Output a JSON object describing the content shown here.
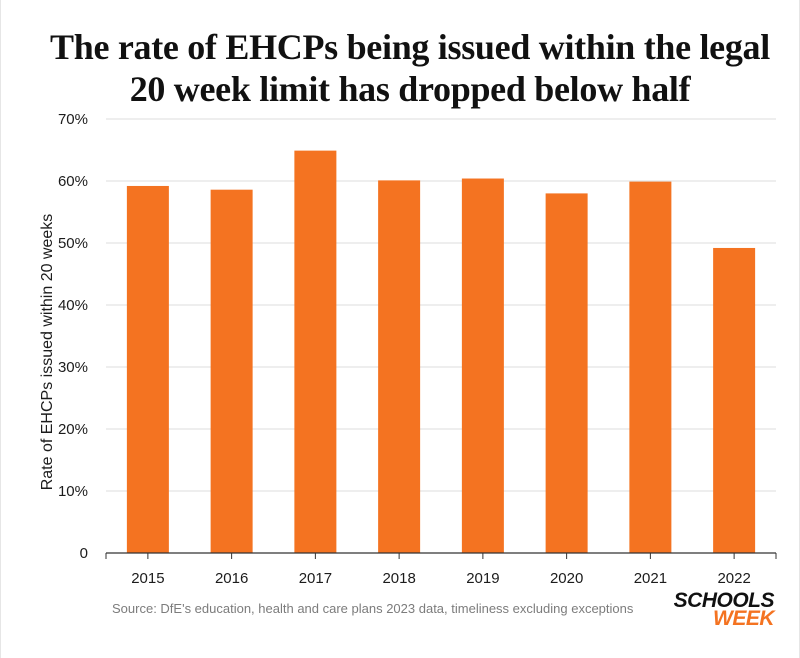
{
  "colors": {
    "bar": "#f47321",
    "grid": "#dcdcdc",
    "axis": "#333333",
    "brand_accent": "#f47321"
  },
  "chart_data": {
    "type": "bar",
    "title": "The rate of EHCPs being issued within the legal 20 week limit has dropped below half",
    "title_lines": [
      "The rate of EHCPs being issued within the legal",
      "20 week limit has dropped below half"
    ],
    "ylabel": "Rate of EHCPs issued within 20 weeks",
    "xlabel": "",
    "categories": [
      "2015",
      "2016",
      "2017",
      "2018",
      "2019",
      "2020",
      "2021",
      "2022"
    ],
    "values": [
      59.2,
      58.6,
      64.9,
      60.1,
      60.4,
      58.0,
      59.9,
      49.2
    ],
    "ylim": [
      0,
      70
    ],
    "yticks": [
      0,
      10,
      20,
      30,
      40,
      50,
      60,
      70
    ],
    "ytick_labels": [
      "0",
      "10%",
      "20%",
      "30%",
      "40%",
      "50%",
      "60%",
      "70%"
    ],
    "grid": true,
    "legend": "none"
  },
  "source": "Source: DfE's education, health and care plans 2023 data, timeliness excluding exceptions",
  "logo": {
    "line1": "SCHOOLS",
    "line2": "WEEK"
  }
}
